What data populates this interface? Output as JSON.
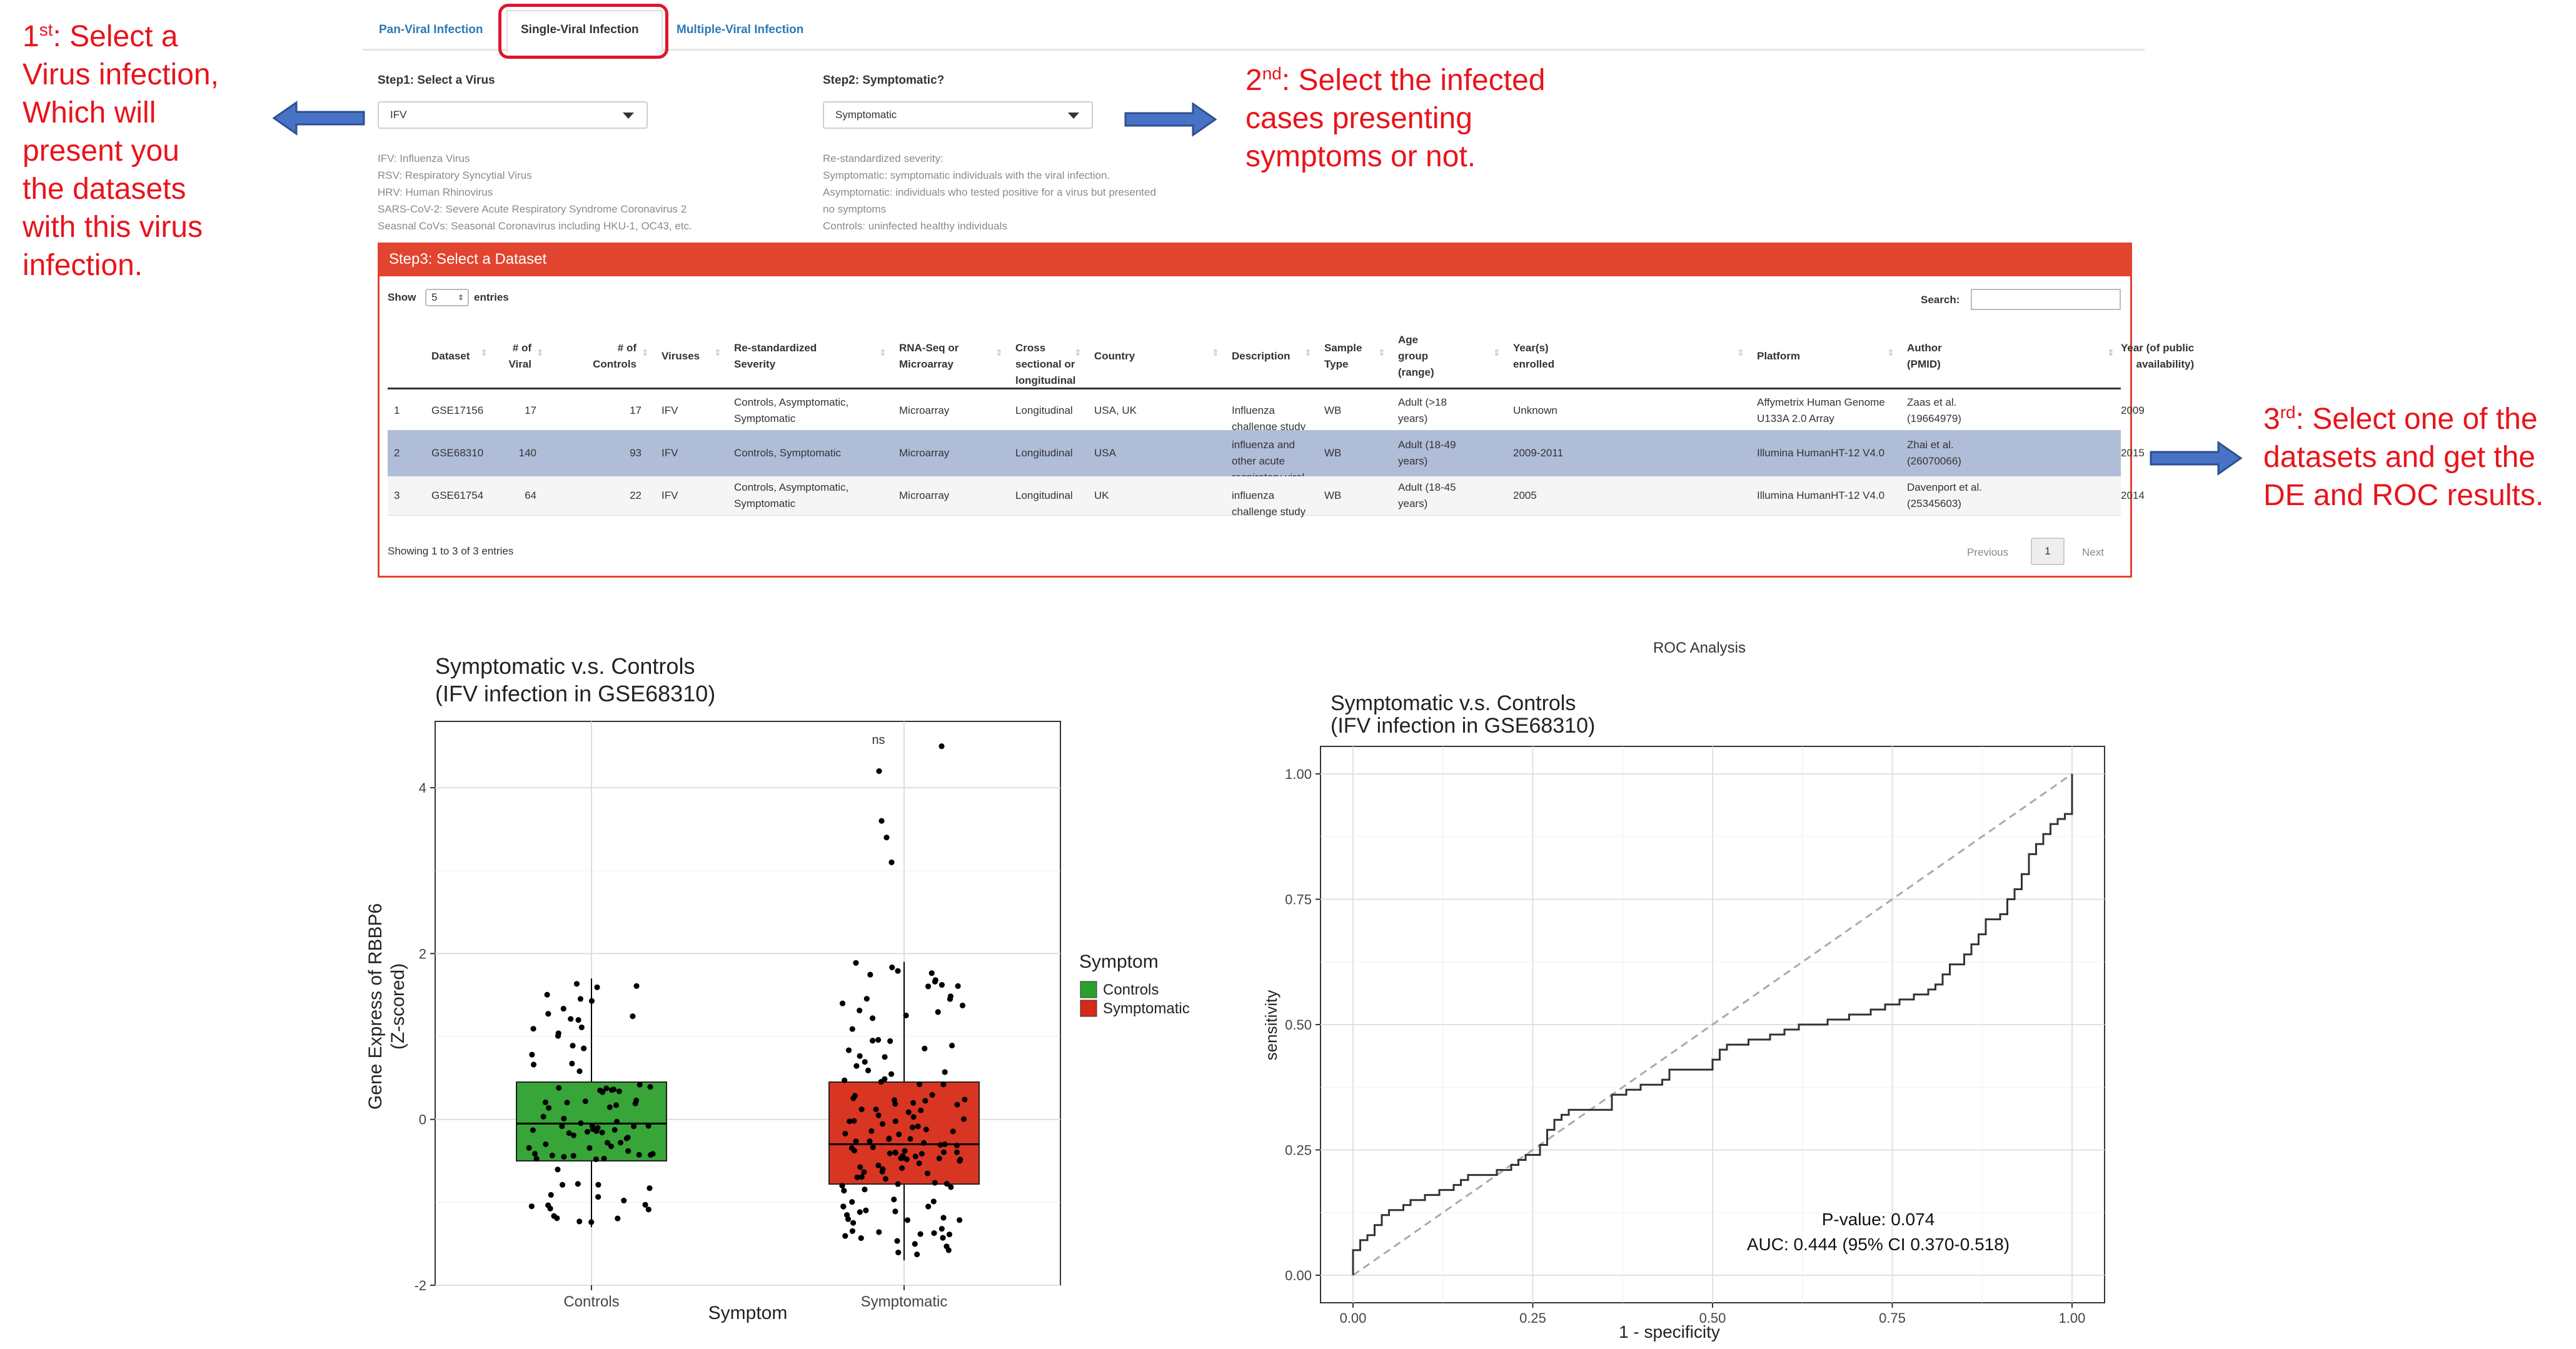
{
  "annotations": {
    "step1": {
      "num": "1",
      "sup": "st",
      "lines": [
        ": Select a",
        "Virus infection,",
        "Which will",
        "present you",
        "the datasets",
        "with this virus",
        "infection."
      ]
    },
    "step2": {
      "num": "2",
      "sup": "nd",
      "lines": [
        ": Select the infected",
        "cases presenting",
        "symptoms or not."
      ]
    },
    "step3": {
      "num": "3",
      "sup": "rd",
      "lines": [
        ": Select one of the",
        "datasets and get the",
        "DE and ROC results."
      ]
    }
  },
  "tabs": [
    "Pan-Viral Infection",
    "Single-Viral Infection",
    "Multiple-Viral Infection"
  ],
  "step1": {
    "label": "Step1: Select a Virus",
    "value": "IFV",
    "help": [
      "IFV: Influenza Virus",
      "RSV: Respiratory Syncytial Virus",
      "HRV: Human Rhinovirus",
      "SARS-CoV-2: Severe Acute Respiratory Syndrome Coronavirus 2",
      "Seasnal CoVs: Seasonal Coronavirus including HKU-1, OC43, etc."
    ]
  },
  "step2": {
    "label": "Step2: Symptomatic?",
    "value": "Symptomatic",
    "help": [
      "Re-standardized severity:",
      "Symptomatic: symptomatic individuals with the viral infection.",
      "Asymptomatic: individuals who tested positive for a virus but presented",
      "no symptoms",
      "Controls: uninfected healthy individuals"
    ]
  },
  "step3": {
    "title": "Step3: Select a Dataset",
    "show_label": "Show",
    "show_value": "5",
    "entries_label": "entries",
    "search_label": "Search:",
    "columns": [
      [
        "Dataset"
      ],
      [
        "# of",
        "Viral"
      ],
      [
        "# of",
        "Controls"
      ],
      [
        "Viruses"
      ],
      [
        "Re-standardized",
        "Severity"
      ],
      [
        "RNA-Seq or",
        "Microarray"
      ],
      [
        "Cross sectional or",
        "longitudinal"
      ],
      [
        "Country"
      ],
      [
        "Description"
      ],
      [
        "Sample",
        "Type"
      ],
      [
        "Age",
        "group",
        "(range)"
      ],
      [
        "Year(s)",
        "enrolled"
      ],
      [
        "Platform"
      ],
      [
        "Author",
        "(PMID)"
      ],
      [
        "Year (of public",
        "availability)"
      ]
    ],
    "rows": [
      {
        "idx": "1",
        "cells": [
          [
            "GSE17156"
          ],
          [
            "17"
          ],
          [
            "17"
          ],
          [
            "IFV"
          ],
          [
            "Controls, Asymptomatic,",
            "Symptomatic"
          ],
          [
            "Microarray"
          ],
          [
            "Longitudinal"
          ],
          [
            "USA, UK"
          ],
          [
            "Influenza challenge study"
          ],
          [
            "WB"
          ],
          [
            "Adult (>18",
            "years)"
          ],
          [
            "Unknown"
          ],
          [
            "Affymetrix Human Genome",
            "U133A 2.0 Array"
          ],
          [
            "Zaas et al.",
            "(19664979)"
          ],
          [
            "2009"
          ]
        ]
      },
      {
        "idx": "2",
        "cells": [
          [
            "GSE68310"
          ],
          [
            "140"
          ],
          [
            "93"
          ],
          [
            "IFV"
          ],
          [
            "Controls, Symptomatic"
          ],
          [
            "Microarray"
          ],
          [
            "Longitudinal"
          ],
          [
            "USA"
          ],
          [
            "influenza and other acute",
            "respiratory viral infections"
          ],
          [
            "WB"
          ],
          [
            "Adult (18-49",
            "years)"
          ],
          [
            "2009-2011"
          ],
          [
            "Illumina HumanHT-12 V4.0"
          ],
          [
            "Zhai et al.",
            "(26070066)"
          ],
          [
            "2015"
          ]
        ]
      },
      {
        "idx": "3",
        "cells": [
          [
            "GSE61754"
          ],
          [
            "64"
          ],
          [
            "22"
          ],
          [
            "IFV"
          ],
          [
            "Controls, Asymptomatic,",
            "Symptomatic"
          ],
          [
            "Microarray"
          ],
          [
            "Longitudinal"
          ],
          [
            "UK"
          ],
          [
            "influenza challenge study"
          ],
          [
            "WB"
          ],
          [
            "Adult (18-45",
            "years)"
          ],
          [
            "2005"
          ],
          [
            "Illumina HumanHT-12 V4.0"
          ],
          [
            "Davenport et al.",
            "(25345603)"
          ],
          [
            "2014"
          ]
        ]
      }
    ],
    "footer": "Showing 1 to 3 of 3 entries",
    "prev": "Previous",
    "page": "1",
    "next": "Next"
  },
  "colors": {
    "accent_red": "#e1452f",
    "annotation_red": "#e8141b",
    "arrow_blue": "#4673c6",
    "selected_row": "#b0bdd9",
    "controls_green": "#2ca02c",
    "symptomatic_red": "#d62a16"
  },
  "chart_data": [
    {
      "type": "box",
      "title": "Symptomatic v.s. Controls",
      "subtitle": "(IFV infection in GSE68310)",
      "xlabel": "Symptom",
      "ylabel": "Gene Express of RBBP6\n(Z-scored)",
      "ylim": [
        -2,
        4.8
      ],
      "yticks": [
        -2,
        0,
        2,
        4
      ],
      "categories": [
        "Controls",
        "Symptomatic"
      ],
      "legend_title": "Symptom",
      "legend_position": "right",
      "significance": "ns",
      "boxes": [
        {
          "name": "Controls",
          "whisker_low": -1.3,
          "q1": -0.5,
          "median": -0.05,
          "q3": 0.45,
          "whisker_high": 1.7,
          "color": "#2ca02c"
        },
        {
          "name": "Symptomatic",
          "whisker_low": -1.7,
          "q1": -0.78,
          "median": -0.3,
          "q3": 0.45,
          "whisker_high": 1.9,
          "color": "#d62a16"
        }
      ],
      "grid": true
    },
    {
      "type": "line",
      "page_title": "ROC Analysis",
      "title": "Symptomatic v.s. Controls",
      "subtitle": "(IFV infection in GSE68310)",
      "xlabel": "1 - specificity",
      "ylabel": "sensitivity",
      "xlim": [
        0,
        1
      ],
      "ylim": [
        0,
        1
      ],
      "ticks": [
        "0.00",
        "0.25",
        "0.50",
        "0.75",
        "1.00"
      ],
      "annotations": [
        "P-value: 0.074",
        "AUC: 0.444 (95% CI 0.370-0.518)"
      ],
      "series": [
        {
          "values": [
            [
              0,
              0
            ],
            [
              0,
              0.05
            ],
            [
              0.01,
              0.07
            ],
            [
              0.02,
              0.08
            ],
            [
              0.03,
              0.1
            ],
            [
              0.04,
              0.12
            ],
            [
              0.05,
              0.13
            ],
            [
              0.07,
              0.14
            ],
            [
              0.08,
              0.15
            ],
            [
              0.1,
              0.16
            ],
            [
              0.12,
              0.17
            ],
            [
              0.14,
              0.18
            ],
            [
              0.15,
              0.19
            ],
            [
              0.16,
              0.2
            ],
            [
              0.2,
              0.21
            ],
            [
              0.22,
              0.22
            ],
            [
              0.23,
              0.23
            ],
            [
              0.24,
              0.24
            ],
            [
              0.26,
              0.26
            ],
            [
              0.27,
              0.29
            ],
            [
              0.28,
              0.31
            ],
            [
              0.29,
              0.32
            ],
            [
              0.3,
              0.33
            ],
            [
              0.35,
              0.33
            ],
            [
              0.36,
              0.36
            ],
            [
              0.38,
              0.37
            ],
            [
              0.4,
              0.38
            ],
            [
              0.43,
              0.39
            ],
            [
              0.44,
              0.41
            ],
            [
              0.5,
              0.42
            ],
            [
              0.5,
              0.43
            ],
            [
              0.51,
              0.45
            ],
            [
              0.52,
              0.46
            ],
            [
              0.55,
              0.47
            ],
            [
              0.58,
              0.48
            ],
            [
              0.6,
              0.49
            ],
            [
              0.62,
              0.5
            ],
            [
              0.66,
              0.51
            ],
            [
              0.69,
              0.52
            ],
            [
              0.72,
              0.53
            ],
            [
              0.74,
              0.54
            ],
            [
              0.76,
              0.55
            ],
            [
              0.78,
              0.56
            ],
            [
              0.8,
              0.57
            ],
            [
              0.81,
              0.58
            ],
            [
              0.82,
              0.6
            ],
            [
              0.83,
              0.62
            ],
            [
              0.85,
              0.64
            ],
            [
              0.86,
              0.66
            ],
            [
              0.87,
              0.68
            ],
            [
              0.88,
              0.71
            ],
            [
              0.9,
              0.72
            ],
            [
              0.91,
              0.75
            ],
            [
              0.92,
              0.77
            ],
            [
              0.93,
              0.8
            ],
            [
              0.94,
              0.84
            ],
            [
              0.95,
              0.86
            ],
            [
              0.96,
              0.88
            ],
            [
              0.97,
              0.9
            ],
            [
              0.98,
              0.91
            ],
            [
              0.99,
              0.92
            ],
            [
              1,
              0.95
            ],
            [
              1,
              1
            ]
          ]
        },
        {
          "values": [
            [
              0,
              0
            ],
            [
              1,
              1
            ]
          ],
          "style": "dashed"
        }
      ]
    }
  ]
}
